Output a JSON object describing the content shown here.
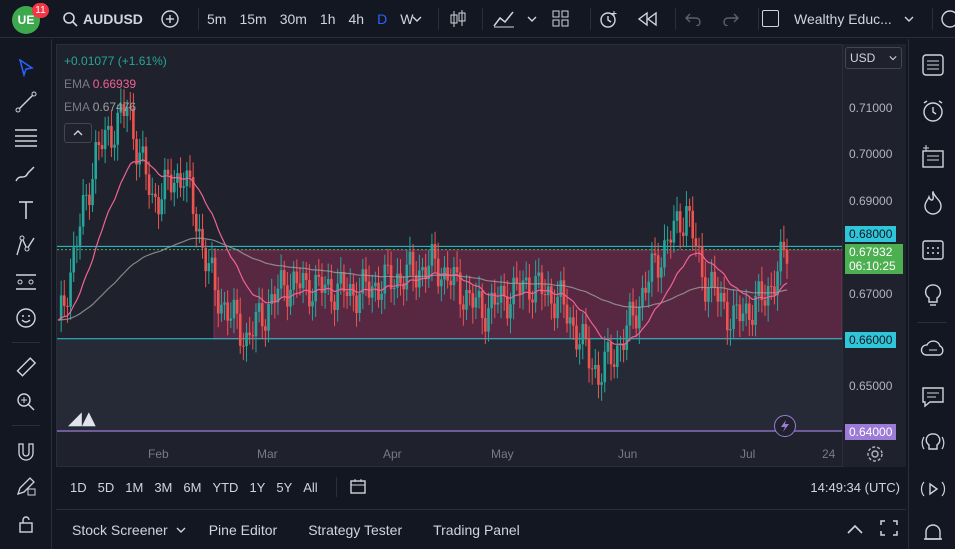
{
  "topbar": {
    "logo": "UE",
    "logo_badge": "11",
    "symbol": "AUDUSD",
    "intervals": [
      "5m",
      "15m",
      "30m",
      "1h",
      "4h",
      "D",
      "W"
    ],
    "active_interval": "D",
    "workspace": "Wealthy Educ..."
  },
  "legend": {
    "change": "+0.01077 (+1.61%)",
    "ema1_label": "EMA",
    "ema1_value": "0.66939",
    "ema2_label": "EMA",
    "ema2_value": "0.67476"
  },
  "price_axis": {
    "currency": "USD",
    "ticks": [
      "0.71000",
      "0.70000",
      "0.69000",
      "0.67000",
      "0.65000"
    ],
    "tag_68": "0.68000",
    "tag_current_price": "0.67932",
    "tag_current_time": "06:10:25",
    "tag_66": "0.66000",
    "tag_64": "0.64000"
  },
  "time_axis": {
    "labels": [
      "Feb",
      "Mar",
      "Apr",
      "May",
      "Jun",
      "Jul",
      "24"
    ]
  },
  "range_bar": {
    "ranges": [
      "1D",
      "5D",
      "1M",
      "3M",
      "6M",
      "YTD",
      "1Y",
      "5Y",
      "All"
    ],
    "clock": "14:49:34 (UTC)"
  },
  "bottom_tabs": [
    "Stock Screener",
    "Pine Editor",
    "Strategy Tester",
    "Trading Panel"
  ],
  "colors": {
    "up": "#26a69a",
    "down": "#ef5350",
    "zone": "#6b2b4b",
    "cyan": "#2ec6d8",
    "purple": "#9c7bd6",
    "ema_fast": "#f06292",
    "ema_slow": "#9e9e9e",
    "current_tag": "#4caf50"
  }
}
